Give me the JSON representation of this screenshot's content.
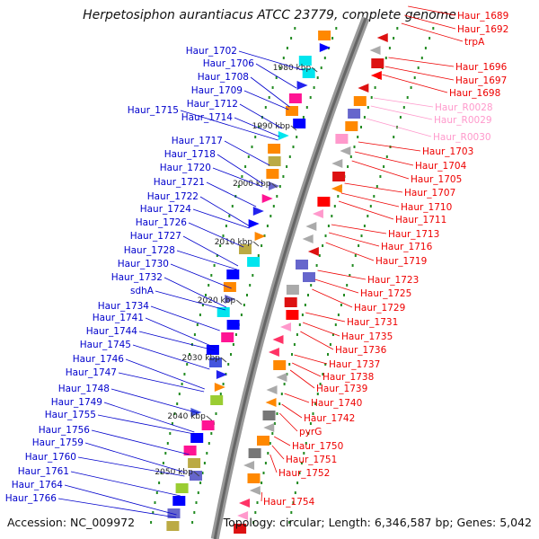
{
  "title": "Herpetosiphon aurantiacus ATCC 23779, complete genome",
  "footer": {
    "accession": "Accession: NC_009972",
    "summary": "Topology: circular; Length: 6,346,587 bp; Genes: 5,042"
  },
  "kbp_ticks": [
    "1980 kbp",
    "1990 kbp",
    "2000 kbp",
    "2010 kbp",
    "2020 kbp",
    "2030 kbp",
    "2040 kbp",
    "2050 kbp"
  ],
  "left_labels": [
    "Haur_1702",
    "Haur_1706",
    "Haur_1708",
    "Haur_1709",
    "Haur_1712",
    "Haur_1715",
    "Haur_1714",
    "Haur_1717",
    "Haur_1718",
    "Haur_1720",
    "Haur_1721",
    "Haur_1722",
    "Haur_1724",
    "Haur_1726",
    "Haur_1727",
    "Haur_1728",
    "Haur_1730",
    "Haur_1732",
    "sdhA",
    "Haur_1734",
    "Haur_1741",
    "Haur_1744",
    "Haur_1745",
    "Haur_1746",
    "Haur_1747",
    "Haur_1748",
    "Haur_1749",
    "Haur_1755",
    "Haur_1756",
    "Haur_1759",
    "Haur_1760",
    "Haur_1761",
    "Haur_1764",
    "Haur_1766"
  ],
  "right_labels": [
    "Haur_1689",
    "Haur_1692",
    "trpA",
    "Haur_1696",
    "Haur_1697",
    "Haur_1698",
    "Haur_R0028",
    "Haur_R0029",
    "Haur_R0030",
    "Haur_1703",
    "Haur_1704",
    "Haur_1705",
    "Haur_1707",
    "Haur_1710",
    "Haur_1711",
    "Haur_1713",
    "Haur_1716",
    "Haur_1719",
    "Haur_1723",
    "Haur_1725",
    "Haur_1729",
    "Haur_1731",
    "Haur_1735",
    "Haur_1736",
    "Haur_1737",
    "Haur_1738",
    "Haur_1739",
    "Haur_1740",
    "Haur_1742",
    "pyrG",
    "Haur_1750",
    "Haur_1751",
    "Haur_1752",
    "Haur_1754"
  ],
  "colors": {
    "left_label": "#0000cc",
    "right_label": "#ee0000",
    "rna_label": "#ff99cc",
    "backbone": "#888888",
    "dots": "#228b22"
  }
}
